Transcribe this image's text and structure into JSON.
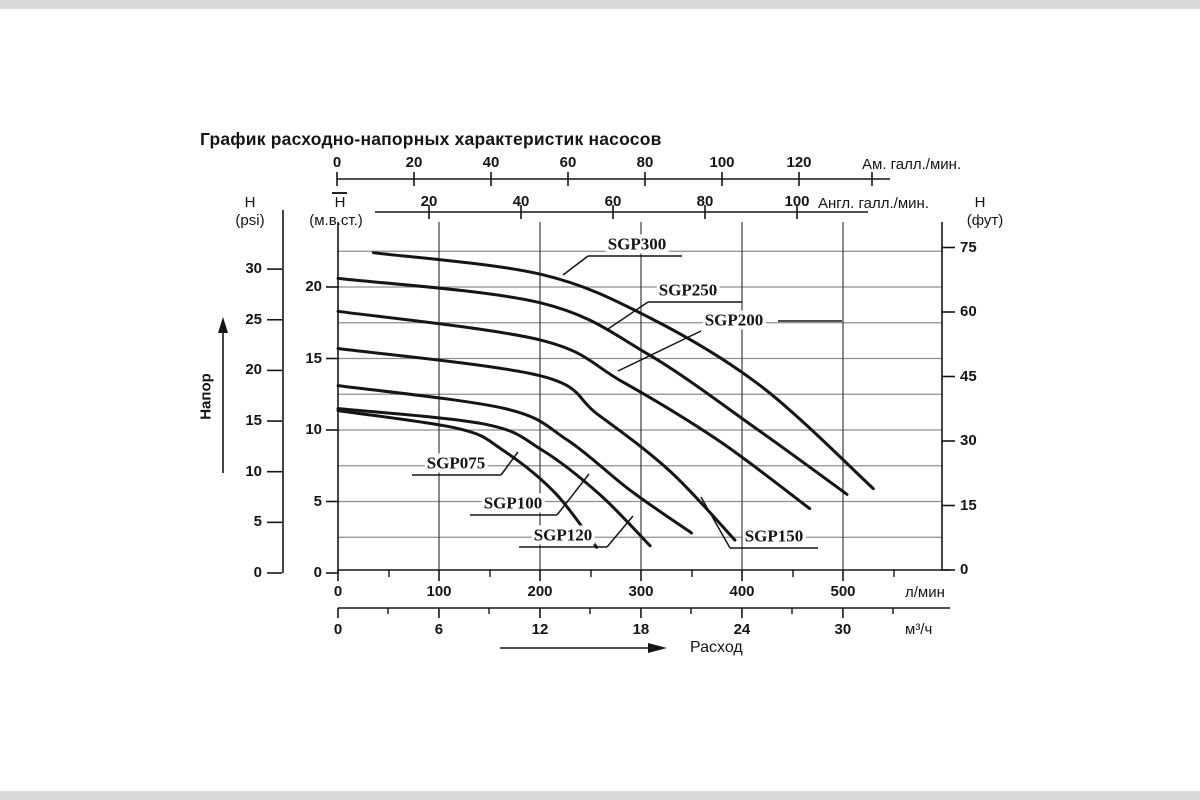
{
  "title": "График расходно-напорных характеристик насосов",
  "colors": {
    "ink": "#151515",
    "grid_h": "#8f8f8f",
    "grid_v": "#3c3c3c",
    "page_edge": "#d9d9d9"
  },
  "axes": {
    "top_us": {
      "unit": "Ам. галл./мин.",
      "ticks": [
        0,
        20,
        40,
        60,
        80,
        100,
        120
      ]
    },
    "top_uk": {
      "unit": "Англ. галл./мин.",
      "ticks": [
        20,
        40,
        60,
        80,
        100
      ]
    },
    "left_psi": {
      "symbol": "Н",
      "unit": "(psi)",
      "ticks": [
        0,
        5,
        10,
        15,
        20,
        25,
        30
      ]
    },
    "left_mwc": {
      "symbol": "Н",
      "unit": "(м.в.ст.)",
      "ticks": [
        0,
        5,
        10,
        15,
        20
      ]
    },
    "right_ft": {
      "symbol": "Н",
      "unit": "(фут)",
      "ticks": [
        0,
        15,
        30,
        45,
        60,
        75
      ]
    },
    "bottom_lmin": {
      "unit": "л/мин",
      "ticks": [
        0,
        100,
        200,
        300,
        400,
        500
      ]
    },
    "bottom_m3h": {
      "unit": "м³/ч",
      "ticks": [
        0,
        6,
        12,
        18,
        24,
        30
      ]
    },
    "head_axis_label": "Напор",
    "flow_axis_label": "Расход"
  },
  "chart_data": {
    "type": "line",
    "title": "График расходно-напорных характеристик насосов",
    "xlabel": "Расход (л/мин)",
    "ylabel": "Напор (м.в.ст.)",
    "x_range_lmin": [
      0,
      550
    ],
    "y_range_mwc": [
      0,
      22.5
    ],
    "grid": {
      "horizontal_step_mwc": 2.5,
      "vertical_step_lmin": 100,
      "grid_on": true
    },
    "legend_position": "inline-labels",
    "series": [
      {
        "name": "SGP300",
        "points_lmin_mwc": [
          [
            35,
            22.4
          ],
          [
            200,
            20.9
          ],
          [
            310,
            17.8
          ],
          [
            420,
            13.0
          ],
          [
            530,
            5.9
          ]
        ]
      },
      {
        "name": "SGP250",
        "points_lmin_mwc": [
          [
            0,
            20.6
          ],
          [
            200,
            18.9
          ],
          [
            307,
            15.3
          ],
          [
            418,
            9.9
          ],
          [
            504,
            5.5
          ]
        ]
      },
      {
        "name": "SGP200",
        "points_lmin_mwc": [
          [
            0,
            18.3
          ],
          [
            200,
            16.3
          ],
          [
            281,
            13.4
          ],
          [
            378,
            9.2
          ],
          [
            467,
            4.5
          ]
        ]
      },
      {
        "name": "SGP150",
        "points_lmin_mwc": [
          [
            0,
            15.7
          ],
          [
            200,
            13.8
          ],
          [
            257,
            11.1
          ],
          [
            329,
            7.1
          ],
          [
            393,
            2.3
          ]
        ]
      },
      {
        "name": "SGP120",
        "points_lmin_mwc": [
          [
            0,
            13.1
          ],
          [
            165,
            11.5
          ],
          [
            227,
            9.3
          ],
          [
            289,
            5.8
          ],
          [
            350,
            2.8
          ]
        ]
      },
      {
        "name": "SGP100",
        "points_lmin_mwc": [
          [
            0,
            11.5
          ],
          [
            146,
            10.4
          ],
          [
            202,
            8.6
          ],
          [
            259,
            5.5
          ],
          [
            309,
            1.9
          ]
        ]
      },
      {
        "name": "SGP075",
        "points_lmin_mwc": [
          [
            0,
            11.35
          ],
          [
            119,
            10.1
          ],
          [
            163,
            8.6
          ],
          [
            215,
            5.6
          ],
          [
            256,
            1.8
          ]
        ]
      }
    ]
  }
}
